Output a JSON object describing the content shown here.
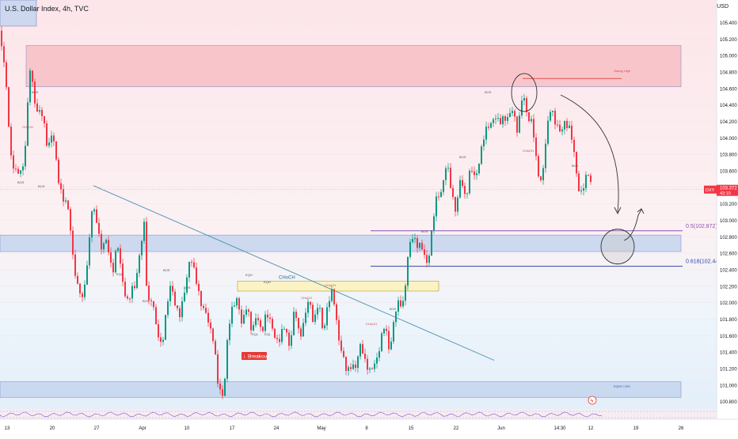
{
  "header": {
    "title": "U.S. Dollar Index, 4h, TVC"
  },
  "axis": {
    "unit": "USD"
  },
  "chart_data": {
    "type": "candlestick",
    "symbol": "DXY",
    "ylim": [
      100.7,
      105.5
    ],
    "x_ticks": [
      "13",
      "20",
      "27",
      "Apr",
      "10",
      "17",
      "24",
      "May",
      "8",
      "15",
      "22",
      "Jun",
      "14:30",
      "12",
      "19",
      "26"
    ],
    "y_ticks": [
      "105.400",
      "105.200",
      "105.000",
      "104.800",
      "104.600",
      "104.400",
      "104.200",
      "104.000",
      "103.800",
      "103.600",
      "103.400",
      "103.200",
      "103.000",
      "102.800",
      "102.600",
      "102.400",
      "102.200",
      "102.000",
      "101.800",
      "101.600",
      "101.400",
      "101.200",
      "101.000",
      "100.800"
    ],
    "last_price": {
      "symbol": "DXY",
      "value": "103.372",
      "countdown": "43:10",
      "price": 103.372
    },
    "price_path": [
      [
        0,
        105.3
      ],
      [
        6,
        104.8
      ],
      [
        14,
        103.8
      ],
      [
        22,
        103.5
      ],
      [
        30,
        103.7
      ],
      [
        38,
        104.8
      ],
      [
        45,
        104.4
      ],
      [
        52,
        104.3
      ],
      [
        60,
        103.9
      ],
      [
        66,
        104.1
      ],
      [
        73,
        103.5
      ],
      [
        80,
        103.3
      ],
      [
        86,
        103.1
      ],
      [
        92,
        102.6
      ],
      [
        98,
        102.2
      ],
      [
        104,
        102.0
      ],
      [
        110,
        102.5
      ],
      [
        116,
        103.1
      ],
      [
        122,
        103.0
      ],
      [
        128,
        102.7
      ],
      [
        135,
        102.7
      ],
      [
        142,
        102.4
      ],
      [
        148,
        102.7
      ],
      [
        154,
        102.3
      ],
      [
        162,
        102.0
      ],
      [
        170,
        102.2
      ],
      [
        176,
        102.6
      ],
      [
        182,
        102.9
      ],
      [
        186,
        102.0
      ],
      [
        192,
        102.1
      ],
      [
        198,
        101.6
      ],
      [
        204,
        101.5
      ],
      [
        210,
        101.9
      ],
      [
        216,
        102.2
      ],
      [
        222,
        102.0
      ],
      [
        228,
        101.8
      ],
      [
        234,
        102.2
      ],
      [
        240,
        102.6
      ],
      [
        246,
        102.3
      ],
      [
        252,
        102.1
      ],
      [
        258,
        101.9
      ],
      [
        264,
        101.7
      ],
      [
        270,
        101.6
      ],
      [
        276,
        100.9
      ],
      [
        282,
        100.85
      ],
      [
        288,
        101.7
      ],
      [
        294,
        101.9
      ],
      [
        300,
        102.1
      ],
      [
        306,
        101.7
      ],
      [
        312,
        101.95
      ],
      [
        318,
        101.7
      ],
      [
        324,
        101.8
      ],
      [
        330,
        101.65
      ],
      [
        336,
        101.9
      ],
      [
        342,
        101.7
      ],
      [
        348,
        101.6
      ],
      [
        354,
        101.55
      ],
      [
        360,
        101.7
      ],
      [
        366,
        101.5
      ],
      [
        372,
        101.9
      ],
      [
        378,
        101.6
      ],
      [
        384,
        101.8
      ],
      [
        390,
        102.0
      ],
      [
        396,
        101.8
      ],
      [
        402,
        102.0
      ],
      [
        408,
        101.6
      ],
      [
        414,
        102.05
      ],
      [
        420,
        102.1
      ],
      [
        426,
        101.7
      ],
      [
        432,
        101.4
      ],
      [
        438,
        101.1
      ],
      [
        444,
        101.3
      ],
      [
        450,
        101.2
      ],
      [
        456,
        101.5
      ],
      [
        462,
        101.3
      ],
      [
        468,
        101.1
      ],
      [
        474,
        101.3
      ],
      [
        480,
        101.5
      ],
      [
        486,
        101.7
      ],
      [
        492,
        101.45
      ],
      [
        498,
        101.8
      ],
      [
        504,
        102.0
      ],
      [
        510,
        102.05
      ],
      [
        516,
        102.6
      ],
      [
        522,
        102.85
      ],
      [
        528,
        102.7
      ],
      [
        534,
        102.6
      ],
      [
        540,
        102.5
      ],
      [
        546,
        102.9
      ],
      [
        552,
        103.3
      ],
      [
        558,
        103.4
      ],
      [
        564,
        103.65
      ],
      [
        570,
        103.4
      ],
      [
        576,
        103.1
      ],
      [
        582,
        103.5
      ],
      [
        588,
        103.3
      ],
      [
        594,
        103.6
      ],
      [
        600,
        103.5
      ],
      [
        606,
        103.8
      ],
      [
        612,
        104.0
      ],
      [
        618,
        104.2
      ],
      [
        624,
        104.25
      ],
      [
        630,
        104.15
      ],
      [
        636,
        104.3
      ],
      [
        642,
        104.2
      ],
      [
        648,
        104.35
      ],
      [
        654,
        104.1
      ],
      [
        660,
        104.5
      ],
      [
        666,
        104.3
      ],
      [
        672,
        104.2
      ],
      [
        678,
        103.6
      ],
      [
        684,
        103.5
      ],
      [
        690,
        104.0
      ],
      [
        696,
        104.4
      ],
      [
        702,
        104.2
      ],
      [
        708,
        104.0
      ],
      [
        714,
        104.25
      ],
      [
        720,
        104.1
      ],
      [
        726,
        103.7
      ],
      [
        732,
        103.35
      ],
      [
        738,
        103.4
      ],
      [
        744,
        103.6
      ],
      [
        748,
        103.37
      ]
    ],
    "annotations": {
      "breakout_label": "Breakout",
      "level_050": "0.5(102.872)",
      "level_0618": "0.618(102.441)",
      "choch_label": "CHoCH",
      "equal_lows": "Equal Lows",
      "strong_high": "Strong High",
      "small_labels": [
        "CHoCH",
        "BOS",
        "BOS",
        "BOS",
        "EQL",
        "BOS",
        "BOS",
        "BOS",
        "EQH",
        "EQH",
        "CHoCH",
        "CHoCH",
        "EQL",
        "EQL",
        "BOS",
        "CHoCH",
        "BOS",
        "BOS",
        "BOS",
        "CHoCH",
        "BOS"
      ]
    },
    "levels": {
      "fib_050": 102.872,
      "fib_0618": 102.441
    },
    "colors": {
      "up": "#089981",
      "down": "#f23645",
      "supply_zone": "#f8c3c7",
      "demand_zone": "#c5d5ef",
      "fib_050": "#8a4fb4",
      "fib_0618": "#3446a6",
      "last_price": "#f23645",
      "trendline": "#4a8fb0"
    }
  }
}
